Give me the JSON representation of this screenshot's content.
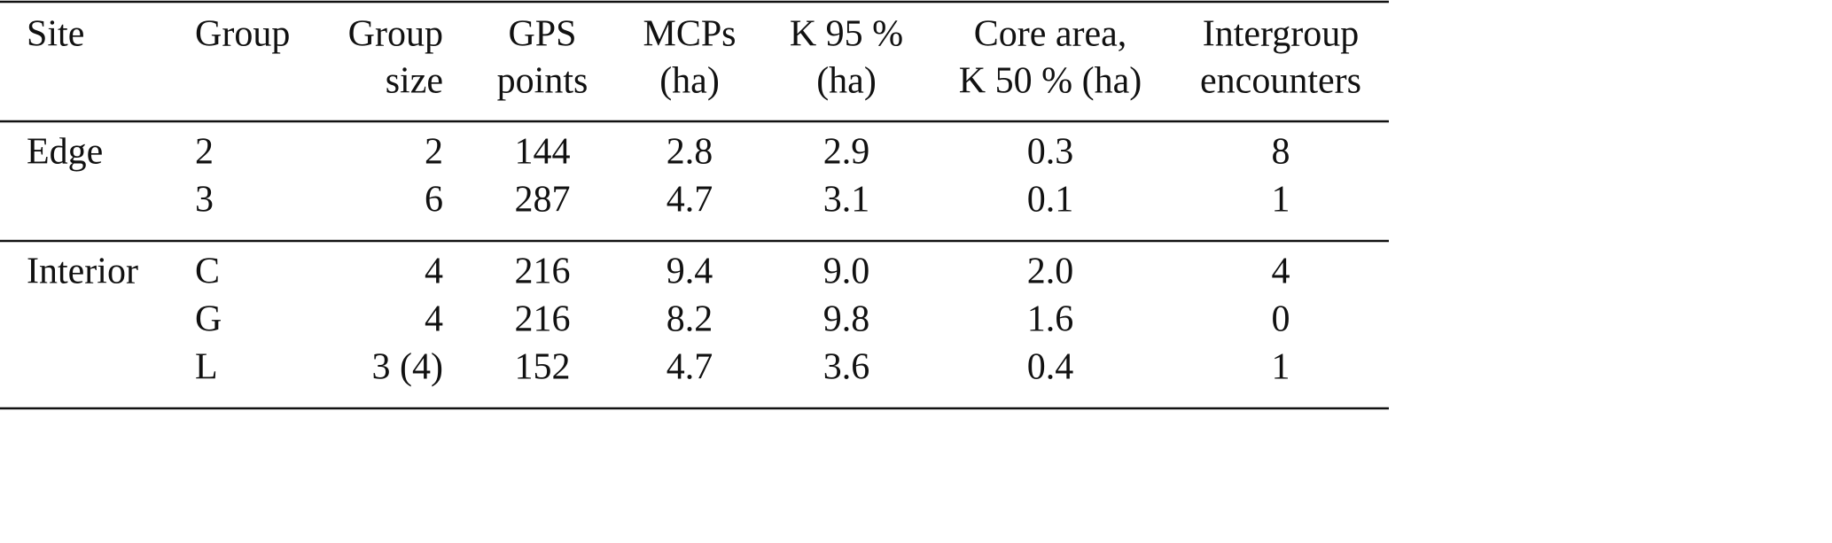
{
  "table": {
    "header": [
      [
        "Site"
      ],
      [
        "Group"
      ],
      [
        "Group",
        "size"
      ],
      [
        "GPS",
        "points"
      ],
      [
        "MCPs",
        "(ha)"
      ],
      [
        "K 95 %",
        "(ha)"
      ],
      [
        "Core area,",
        "K 50 % (ha)"
      ],
      [
        "Intergroup",
        "encounters"
      ]
    ],
    "groups": [
      {
        "site": "Edge",
        "rows": [
          [
            "2",
            "2",
            "144",
            "2.8",
            "2.9",
            "0.3",
            "8"
          ],
          [
            "3",
            "6",
            "287",
            "4.7",
            "3.1",
            "0.1",
            "1"
          ]
        ]
      },
      {
        "site": "Interior",
        "rows": [
          [
            "C",
            "4",
            "216",
            "9.4",
            "9.0",
            "2.0",
            "4"
          ],
          [
            "G",
            "4",
            "216",
            "8.2",
            "9.8",
            "1.6",
            "0"
          ],
          [
            "L",
            "3 (4)",
            "152",
            "4.7",
            "3.6",
            "0.4",
            "1"
          ]
        ]
      }
    ]
  }
}
